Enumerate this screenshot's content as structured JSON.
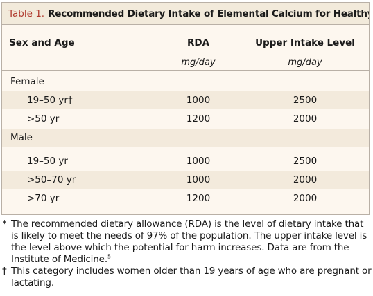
{
  "table": {
    "label": "Table 1.",
    "title": "Recommended Dietary Intake of Elemental Calcium for Healthy Persons.",
    "title_mark": "*",
    "headers": {
      "sex_age": "Sex and Age",
      "rda": "RDA",
      "uil": "Upper Intake Level"
    },
    "units": {
      "rda": "mg/day",
      "uil": "mg/day"
    },
    "rows": [
      {
        "label": "Female",
        "rda": "",
        "uil": "",
        "kind": "group"
      },
      {
        "label": "19–50 yr†",
        "rda": "1000",
        "uil": "2500",
        "kind": "sub"
      },
      {
        "label": ">50 yr",
        "rda": "1200",
        "uil": "2000",
        "kind": "sub"
      },
      {
        "label": "Male",
        "rda": "",
        "uil": "",
        "kind": "group"
      },
      {
        "label": "19–50 yr",
        "rda": "1000",
        "uil": "2500",
        "kind": "sub"
      },
      {
        "label": ">50–70 yr",
        "rda": "1000",
        "uil": "2000",
        "kind": "sub"
      },
      {
        "label": ">70 yr",
        "rda": "1200",
        "uil": "2000",
        "kind": "sub"
      }
    ]
  },
  "footnotes": [
    {
      "mark": "*",
      "text": "The recommended dietary allowance (RDA) is the level of dietary intake that is likely to meet the needs of 97% of the population. The upper intake level is the level above which the potential for harm increases. Data are from the Institute of Medicine.",
      "ref": "5"
    },
    {
      "mark": "†",
      "text": "This category includes women older than 19 years of age who are pregnant or lactating.",
      "ref": ""
    }
  ]
}
